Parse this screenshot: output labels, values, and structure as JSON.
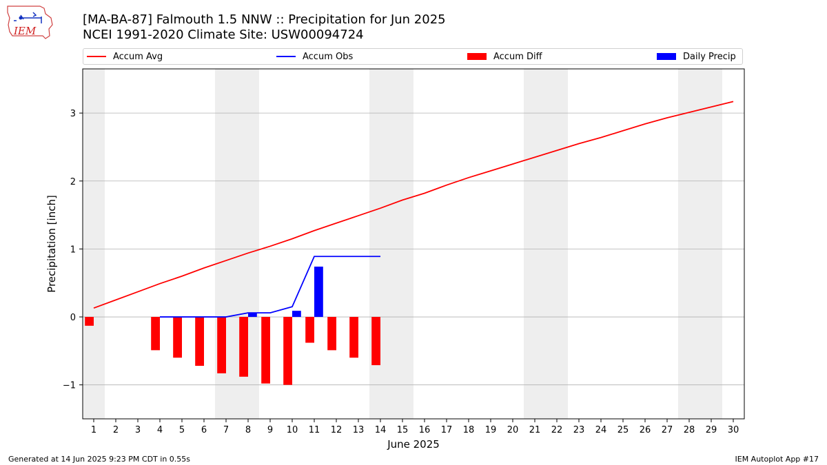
{
  "header": {
    "title": "[MA-BA-87] Falmouth 1.5 NNW :: Precipitation for Jun 2025",
    "subtitle": "NCEI 1991-2020 Climate Site: USW00094724",
    "logo_text": "IEM"
  },
  "legend": {
    "accum_avg": "Accum Avg",
    "accum_obs": "Accum Obs",
    "accum_diff": "Accum Diff",
    "daily_precip": "Daily Precip"
  },
  "footer": {
    "generated": "Generated at 14 Jun 2025 9:23 PM CDT in 0.55s",
    "app": "IEM Autoplot App #17"
  },
  "colors": {
    "accum_avg": "#ff0000",
    "accum_obs": "#0000ff",
    "accum_diff": "#ff0000",
    "daily_precip": "#0000ff",
    "weekend_band": "#eeeeee",
    "grid": "#b0b0b0"
  },
  "chart_data": {
    "type": "bar",
    "xlabel": "June 2025",
    "ylabel": "Precipitation [inch]",
    "xlim": [
      0.5,
      30.5
    ],
    "ylim": [
      -1.5,
      3.65
    ],
    "x_ticks": [
      1,
      2,
      3,
      4,
      5,
      6,
      7,
      8,
      9,
      10,
      11,
      12,
      13,
      14,
      15,
      16,
      17,
      18,
      19,
      20,
      21,
      22,
      23,
      24,
      25,
      26,
      27,
      28,
      29,
      30
    ],
    "y_ticks": [
      -1,
      0,
      1,
      2,
      3
    ],
    "y_tick_labels": [
      "−1",
      "0",
      "1",
      "2",
      "3"
    ],
    "grid": "horizontal",
    "legend_position": "top",
    "weekend_bands": [
      [
        0.5,
        1.5
      ],
      [
        6.5,
        8.5
      ],
      [
        13.5,
        15.5
      ],
      [
        20.5,
        22.5
      ],
      [
        27.5,
        29.5
      ]
    ],
    "series": [
      {
        "name": "Accum Avg",
        "type": "line",
        "x": [
          1,
          2,
          3,
          4,
          5,
          6,
          7,
          8,
          9,
          10,
          11,
          12,
          13,
          14,
          15,
          16,
          17,
          18,
          19,
          20,
          21,
          22,
          23,
          24,
          25,
          26,
          27,
          28,
          29,
          30
        ],
        "values": [
          0.13,
          0.25,
          0.37,
          0.49,
          0.6,
          0.72,
          0.83,
          0.94,
          1.04,
          1.15,
          1.27,
          1.38,
          1.49,
          1.6,
          1.72,
          1.82,
          1.94,
          2.05,
          2.15,
          2.25,
          2.35,
          2.45,
          2.55,
          2.64,
          2.74,
          2.84,
          2.93,
          3.01,
          3.09,
          3.17
        ]
      },
      {
        "name": "Accum Obs",
        "type": "line",
        "x": [
          4,
          5,
          6,
          7,
          8,
          9,
          10,
          11,
          12,
          13,
          14
        ],
        "values": [
          0.0,
          0.0,
          0.0,
          0.0,
          0.06,
          0.06,
          0.15,
          0.89,
          0.89,
          0.89,
          0.89
        ]
      },
      {
        "name": "Accum Diff",
        "type": "bar",
        "x": [
          1,
          4,
          5,
          6,
          7,
          8,
          9,
          10,
          11,
          12,
          13,
          14
        ],
        "values": [
          -0.13,
          -0.49,
          -0.6,
          -0.72,
          -0.83,
          -0.88,
          -0.98,
          -1.0,
          -0.38,
          -0.49,
          -0.6,
          -0.71
        ]
      },
      {
        "name": "Daily Precip",
        "type": "bar",
        "x": [
          8,
          10,
          11
        ],
        "values": [
          0.06,
          0.09,
          0.74
        ]
      }
    ]
  }
}
